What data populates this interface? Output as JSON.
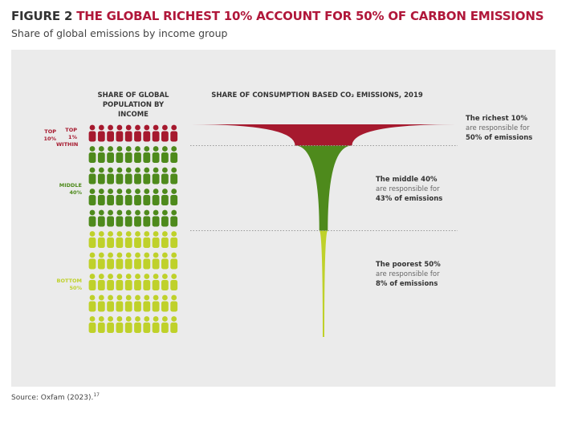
{
  "chart_data": {
    "type": "funnel",
    "figure_label": "FIGURE 2",
    "title": "THE GLOBAL RICHEST 10% ACCOUNT FOR 50% OF CARBON EMISSIONS",
    "subtitle": "Share of global emissions by income group",
    "population_heading": "SHARE OF GLOBAL POPULATION BY INCOME",
    "emissions_heading": "SHARE OF CONSUMPTION BASED CO₂ EMISSIONS, 2019",
    "top_within_label": "TOP 1% WITHIN",
    "group_labels": [
      "TOP 10%",
      "MIDDLE 40%",
      "BOTTOM 50%"
    ],
    "categories": [
      "The richest 10%",
      "The middle 40%",
      "The poorest 50%"
    ],
    "notes": [
      "are responsible for",
      "are responsible for",
      "are responsible for"
    ],
    "population": [
      10,
      40,
      50
    ],
    "values": [
      50,
      43,
      8
    ],
    "value_labels": [
      "50% of emissions",
      "43% of emissions",
      "8% of emissions"
    ],
    "colors": [
      "#a6192e",
      "#4e8a1c",
      "#bfd12a"
    ],
    "source": "Source: Oxfam (2023).",
    "source_note": "17"
  }
}
